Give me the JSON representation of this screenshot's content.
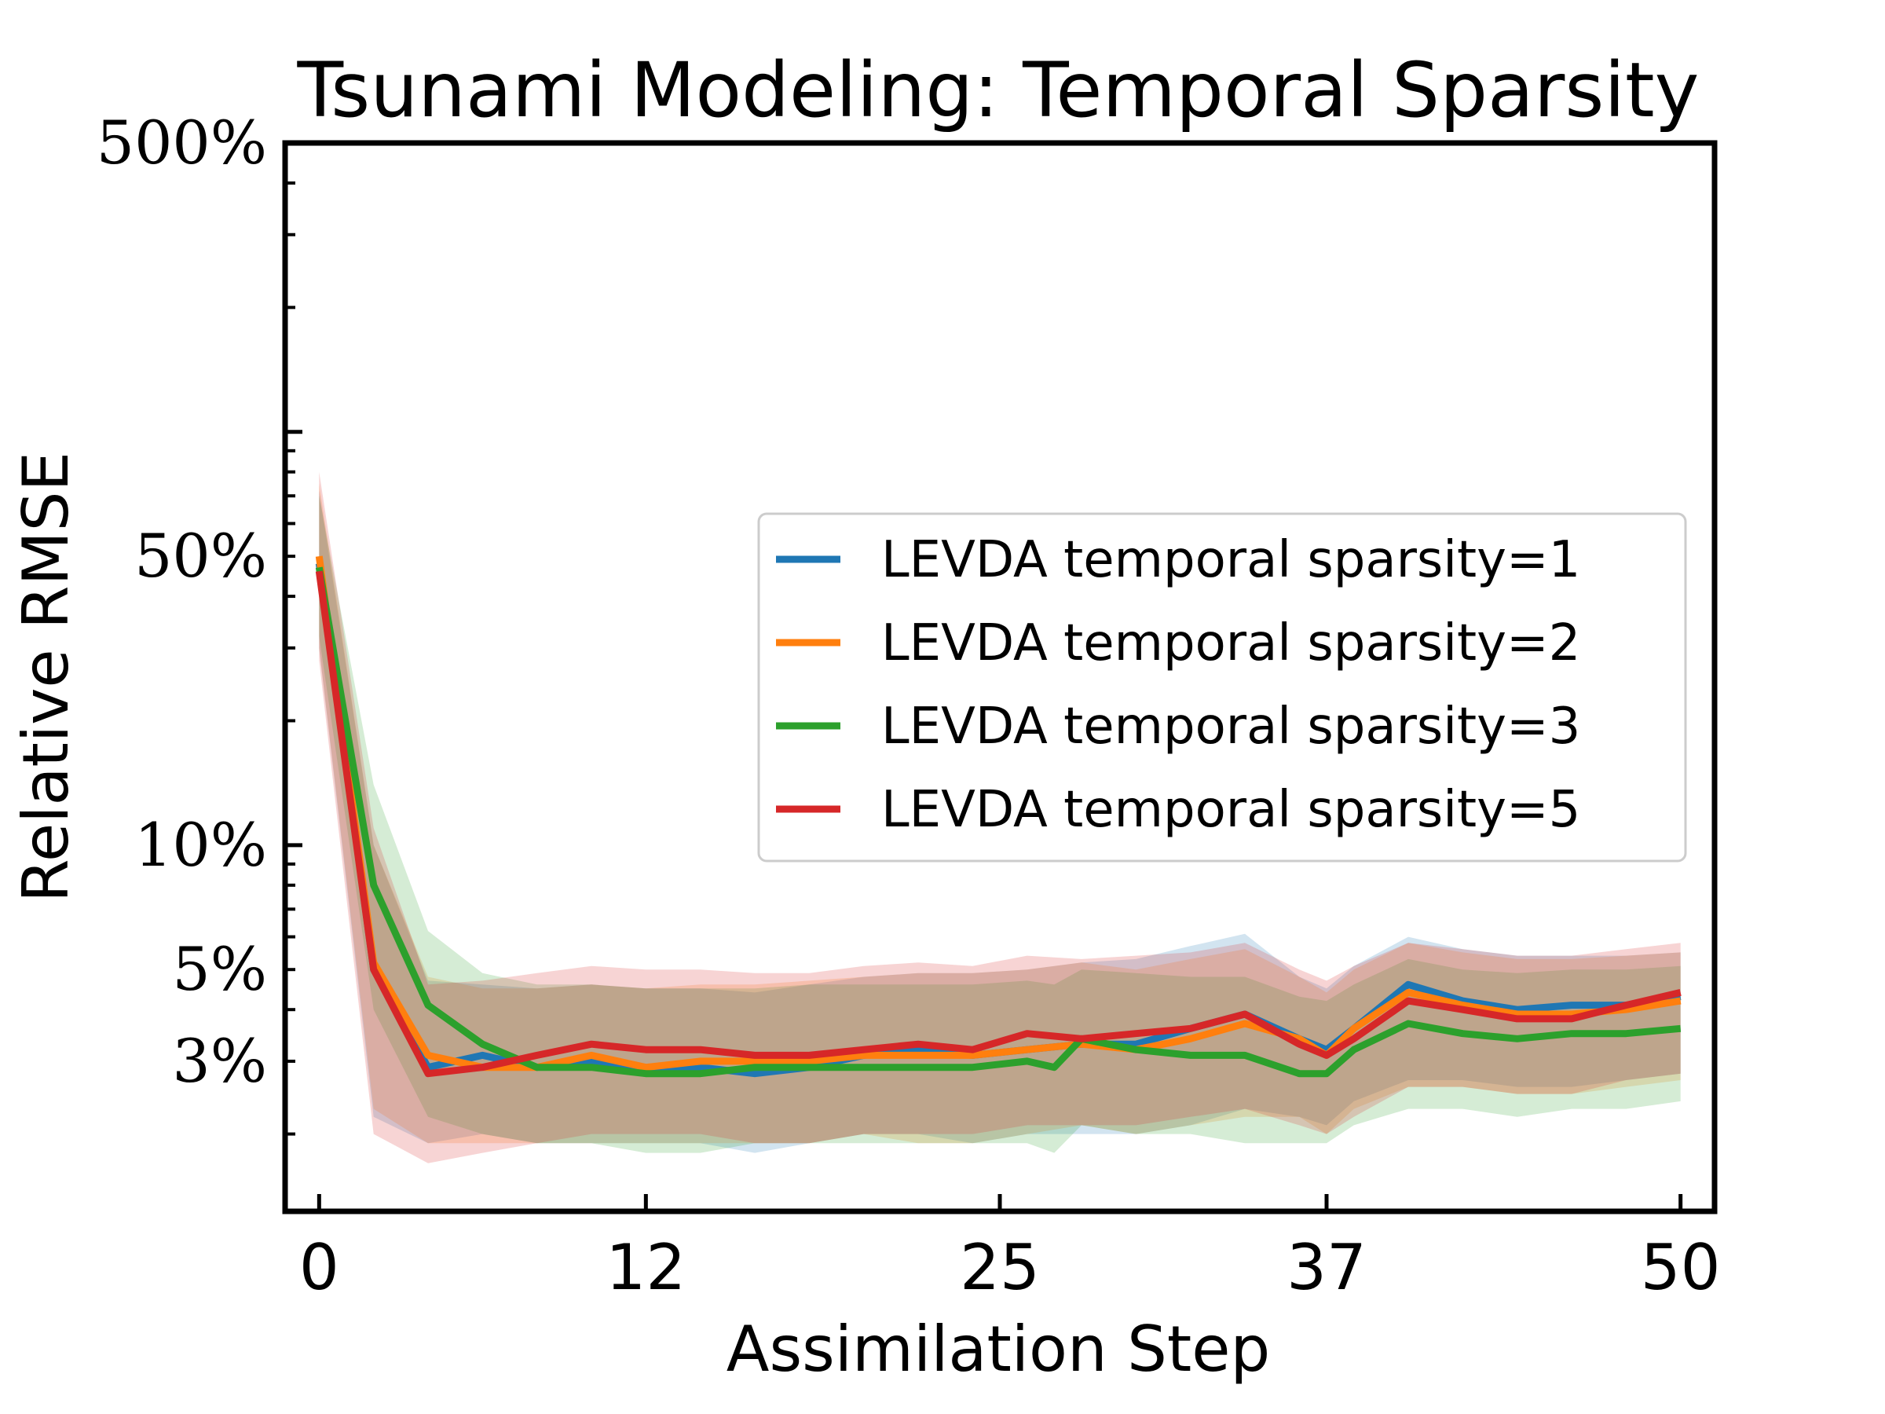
{
  "chart_data": {
    "type": "line",
    "title": "Tsunami Modeling: Temporal Sparsity",
    "xlabel": "Assimilation Step",
    "ylabel": "Relative RMSE",
    "yscale": "log",
    "xlim": [
      -1.25,
      51.25
    ],
    "ylim": [
      0.013,
      5.0
    ],
    "xticks": [
      0,
      12,
      25,
      37,
      50
    ],
    "xtick_labels": [
      "0",
      "12",
      "25",
      "37",
      "50"
    ],
    "yticks": [
      0.03,
      0.05,
      0.1,
      0.5,
      5.0
    ],
    "ytick_labels": [
      "3%",
      "5%",
      "10%",
      "50%",
      "500%"
    ],
    "legend_position": "right",
    "series": [
      {
        "name": "LEVDA temporal sparsity=1",
        "color": "#1f77b4",
        "x": [
          0,
          2,
          4,
          6,
          8,
          10,
          12,
          14,
          16,
          18,
          20,
          22,
          24,
          26,
          28,
          30,
          32,
          34,
          36,
          37,
          38,
          40,
          42,
          44,
          46,
          48,
          50
        ],
        "values": [
          0.48,
          0.05,
          0.029,
          0.031,
          0.029,
          0.03,
          0.029,
          0.029,
          0.028,
          0.029,
          0.031,
          0.032,
          0.031,
          0.032,
          0.033,
          0.033,
          0.036,
          0.039,
          0.034,
          0.032,
          0.036,
          0.046,
          0.042,
          0.04,
          0.041,
          0.041,
          0.043
        ],
        "band_lower": [
          0.3,
          0.022,
          0.019,
          0.02,
          0.019,
          0.019,
          0.019,
          0.019,
          0.018,
          0.019,
          0.02,
          0.02,
          0.019,
          0.02,
          0.02,
          0.02,
          0.021,
          0.023,
          0.022,
          0.021,
          0.024,
          0.027,
          0.027,
          0.026,
          0.026,
          0.027,
          0.028
        ],
        "band_upper": [
          0.72,
          0.1,
          0.047,
          0.046,
          0.045,
          0.046,
          0.045,
          0.045,
          0.044,
          0.046,
          0.048,
          0.049,
          0.049,
          0.05,
          0.052,
          0.053,
          0.057,
          0.061,
          0.048,
          0.045,
          0.051,
          0.06,
          0.056,
          0.054,
          0.054,
          0.054,
          0.055
        ]
      },
      {
        "name": "LEVDA temporal sparsity=2",
        "color": "#ff7f0e",
        "x": [
          0,
          2,
          4,
          6,
          8,
          10,
          12,
          14,
          16,
          18,
          20,
          22,
          24,
          26,
          28,
          30,
          32,
          34,
          36,
          37,
          38,
          40,
          42,
          44,
          46,
          48,
          50
        ],
        "values": [
          0.5,
          0.052,
          0.031,
          0.029,
          0.029,
          0.031,
          0.029,
          0.03,
          0.03,
          0.03,
          0.031,
          0.031,
          0.031,
          0.032,
          0.033,
          0.032,
          0.034,
          0.037,
          0.034,
          0.031,
          0.036,
          0.044,
          0.041,
          0.039,
          0.039,
          0.04,
          0.042
        ],
        "band_lower": [
          0.3,
          0.023,
          0.019,
          0.019,
          0.019,
          0.019,
          0.019,
          0.019,
          0.019,
          0.019,
          0.02,
          0.019,
          0.019,
          0.02,
          0.021,
          0.02,
          0.021,
          0.022,
          0.022,
          0.02,
          0.023,
          0.026,
          0.026,
          0.025,
          0.025,
          0.026,
          0.027
        ],
        "band_upper": [
          0.75,
          0.1,
          0.048,
          0.045,
          0.045,
          0.046,
          0.045,
          0.046,
          0.046,
          0.047,
          0.048,
          0.049,
          0.049,
          0.05,
          0.052,
          0.05,
          0.053,
          0.056,
          0.048,
          0.044,
          0.05,
          0.058,
          0.055,
          0.053,
          0.053,
          0.054,
          0.055
        ]
      },
      {
        "name": "LEVDA temporal sparsity=3",
        "color": "#2ca02c",
        "x": [
          0,
          2,
          4,
          6,
          8,
          10,
          12,
          14,
          16,
          18,
          20,
          22,
          24,
          26,
          27,
          28,
          30,
          32,
          34,
          36,
          37,
          38,
          40,
          42,
          44,
          46,
          48,
          50
        ],
        "values": [
          0.47,
          0.08,
          0.041,
          0.033,
          0.029,
          0.029,
          0.028,
          0.028,
          0.029,
          0.029,
          0.029,
          0.029,
          0.029,
          0.03,
          0.029,
          0.034,
          0.032,
          0.031,
          0.031,
          0.028,
          0.028,
          0.032,
          0.037,
          0.035,
          0.034,
          0.035,
          0.035,
          0.036
        ],
        "band_lower": [
          0.32,
          0.04,
          0.022,
          0.02,
          0.019,
          0.019,
          0.018,
          0.018,
          0.019,
          0.019,
          0.019,
          0.019,
          0.019,
          0.019,
          0.018,
          0.021,
          0.02,
          0.02,
          0.019,
          0.019,
          0.019,
          0.021,
          0.023,
          0.023,
          0.022,
          0.023,
          0.023,
          0.024
        ],
        "band_upper": [
          0.7,
          0.14,
          0.062,
          0.049,
          0.046,
          0.046,
          0.045,
          0.045,
          0.045,
          0.046,
          0.046,
          0.046,
          0.046,
          0.047,
          0.046,
          0.05,
          0.049,
          0.048,
          0.048,
          0.043,
          0.042,
          0.046,
          0.053,
          0.05,
          0.049,
          0.05,
          0.05,
          0.051
        ]
      },
      {
        "name": "LEVDA temporal sparsity=5",
        "color": "#d62728",
        "x": [
          0,
          2,
          4,
          6,
          8,
          10,
          12,
          14,
          16,
          18,
          20,
          22,
          24,
          26,
          28,
          30,
          32,
          34,
          36,
          37,
          38,
          40,
          42,
          44,
          46,
          48,
          50
        ],
        "values": [
          0.46,
          0.05,
          0.028,
          0.029,
          0.031,
          0.033,
          0.032,
          0.032,
          0.031,
          0.031,
          0.032,
          0.033,
          0.032,
          0.035,
          0.034,
          0.035,
          0.036,
          0.039,
          0.033,
          0.031,
          0.034,
          0.042,
          0.04,
          0.038,
          0.038,
          0.041,
          0.044
        ],
        "band_lower": [
          0.28,
          0.02,
          0.017,
          0.018,
          0.019,
          0.02,
          0.02,
          0.02,
          0.019,
          0.019,
          0.02,
          0.02,
          0.02,
          0.021,
          0.021,
          0.021,
          0.022,
          0.023,
          0.021,
          0.02,
          0.022,
          0.026,
          0.026,
          0.025,
          0.025,
          0.027,
          0.028
        ],
        "band_upper": [
          0.8,
          0.11,
          0.046,
          0.047,
          0.049,
          0.051,
          0.05,
          0.05,
          0.049,
          0.049,
          0.051,
          0.052,
          0.051,
          0.054,
          0.053,
          0.054,
          0.055,
          0.058,
          0.05,
          0.047,
          0.051,
          0.058,
          0.056,
          0.054,
          0.054,
          0.056,
          0.058
        ]
      }
    ]
  }
}
